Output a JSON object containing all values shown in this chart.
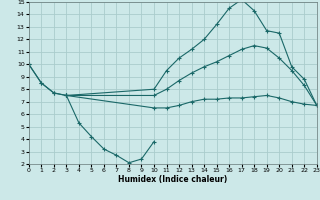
{
  "xlabel": "Humidex (Indice chaleur)",
  "bg_color": "#cce8e8",
  "grid_color": "#aacccc",
  "line_color": "#1a6868",
  "xlim": [
    0,
    23
  ],
  "ylim": [
    2,
    15
  ],
  "xticks": [
    0,
    1,
    2,
    3,
    4,
    5,
    6,
    7,
    8,
    9,
    10,
    11,
    12,
    13,
    14,
    15,
    16,
    17,
    18,
    19,
    20,
    21,
    22,
    23
  ],
  "yticks": [
    2,
    3,
    4,
    5,
    6,
    7,
    8,
    9,
    10,
    11,
    12,
    13,
    14,
    15
  ],
  "curve1_x": [
    0,
    1,
    2,
    3,
    10,
    11,
    12,
    13,
    14,
    15,
    16,
    17,
    18,
    19,
    20,
    21,
    22,
    23
  ],
  "curve1_y": [
    10,
    8.5,
    7.7,
    7.5,
    8.0,
    9.5,
    10.5,
    11.2,
    12.0,
    13.2,
    14.5,
    15.2,
    14.3,
    12.7,
    12.5,
    9.8,
    8.8,
    6.7
  ],
  "curve2_x": [
    3,
    4,
    5,
    6,
    7,
    8,
    9,
    10
  ],
  "curve2_y": [
    7.5,
    5.3,
    4.2,
    3.2,
    2.7,
    2.1,
    2.4,
    3.8
  ],
  "curve3_x": [
    3,
    10,
    11,
    12,
    13,
    14,
    15,
    16,
    17,
    18,
    19,
    20,
    21,
    22,
    23
  ],
  "curve3_y": [
    7.5,
    7.5,
    8.0,
    8.7,
    9.3,
    9.8,
    10.2,
    10.7,
    11.2,
    11.5,
    11.3,
    10.5,
    9.5,
    8.3,
    6.7
  ],
  "curve4_x": [
    0,
    1,
    2,
    3,
    10,
    11,
    12,
    13,
    14,
    15,
    16,
    17,
    18,
    19,
    20,
    21,
    22,
    23
  ],
  "curve4_y": [
    10,
    8.5,
    7.7,
    7.5,
    6.5,
    6.5,
    6.7,
    7.0,
    7.2,
    7.2,
    7.3,
    7.3,
    7.4,
    7.5,
    7.3,
    7.0,
    6.8,
    6.7
  ]
}
